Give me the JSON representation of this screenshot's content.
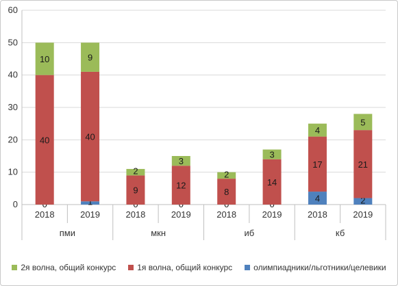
{
  "chart_data": {
    "type": "bar",
    "stacked": true,
    "groups": [
      "пми",
      "мкн",
      "иб",
      "кб"
    ],
    "categories": [
      "2018",
      "2019",
      "2018",
      "2019",
      "2018",
      "2019",
      "2018",
      "2019"
    ],
    "ylim": [
      0,
      60
    ],
    "yticks": [
      0,
      10,
      20,
      30,
      40,
      50,
      60
    ],
    "grid": true,
    "legend_position": "bottom",
    "series": [
      {
        "name": "олимпиадники/льготники/целевики",
        "color": "#4f81bd",
        "values": [
          0,
          1,
          0,
          0,
          0,
          0,
          4,
          2
        ]
      },
      {
        "name": "1я волна, общий конкурс",
        "color": "#c0504d",
        "values": [
          40,
          40,
          9,
          12,
          8,
          14,
          17,
          21
        ]
      },
      {
        "name": "2я волна, общий конкурс",
        "color": "#9bbb59",
        "values": [
          10,
          9,
          2,
          3,
          2,
          3,
          4,
          5
        ]
      }
    ],
    "legend_order": [
      2,
      1,
      0
    ]
  }
}
